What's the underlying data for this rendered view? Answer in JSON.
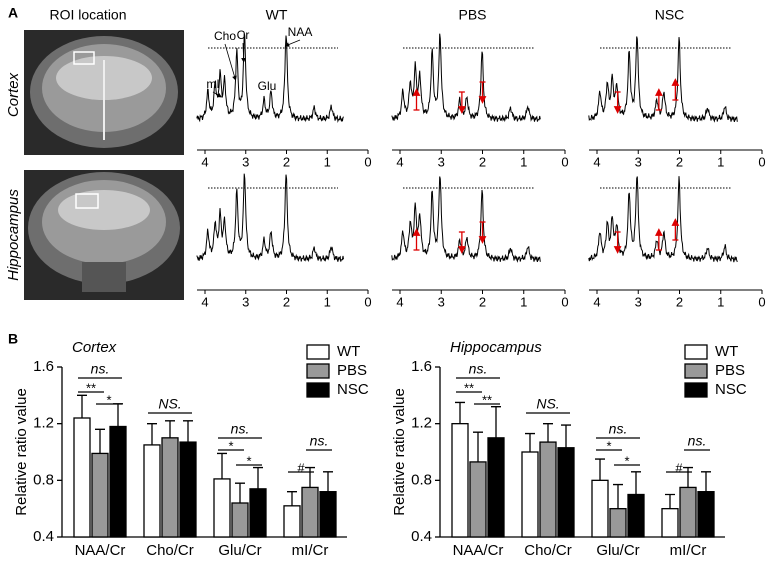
{
  "panel_labels": {
    "a": "A",
    "b": "B"
  },
  "panel_a": {
    "roi_title": "ROI location",
    "groups": [
      "WT",
      "PBS",
      "NSC"
    ],
    "regions": [
      "Cortex",
      "Hippocampus"
    ],
    "peak_labels": [
      "Cho",
      "Cr",
      "NAA",
      "mI",
      "Glu"
    ],
    "xlim": [
      4,
      0
    ],
    "xticks": [
      4,
      3,
      2,
      1,
      0
    ]
  },
  "chart_data": [
    {
      "type": "bar",
      "title": "Cortex",
      "y_label": "Relative ratio value",
      "categories": [
        "NAA/Cr",
        "Cho/Cr",
        "Glu/Cr",
        "mI/Cr"
      ],
      "series": [
        {
          "name": "WT",
          "color": "#ffffff",
          "values": [
            1.24,
            1.05,
            0.81,
            0.62
          ],
          "errors": [
            0.16,
            0.15,
            0.18,
            0.1
          ]
        },
        {
          "name": "PBS",
          "color": "#999999",
          "values": [
            0.99,
            1.1,
            0.64,
            0.75
          ],
          "errors": [
            0.17,
            0.12,
            0.14,
            0.14
          ]
        },
        {
          "name": "NSC",
          "color": "#000000",
          "values": [
            1.18,
            1.07,
            0.74,
            0.72
          ],
          "errors": [
            0.16,
            0.15,
            0.15,
            0.14
          ]
        }
      ],
      "ylim": [
        0.4,
        1.6
      ],
      "yticks": [
        0.4,
        0.8,
        1.2,
        1.6
      ],
      "legend": "upper right",
      "annotations": [
        "ns.",
        "**",
        "*",
        "NS.",
        "ns.",
        "*",
        "*",
        "#",
        "ns."
      ]
    },
    {
      "type": "bar",
      "title": "Hippocampus",
      "y_label": "Relative ratio value",
      "categories": [
        "NAA/Cr",
        "Cho/Cr",
        "Glu/Cr",
        "mI/Cr"
      ],
      "series": [
        {
          "name": "WT",
          "color": "#ffffff",
          "values": [
            1.2,
            1.0,
            0.8,
            0.6
          ],
          "errors": [
            0.15,
            0.13,
            0.15,
            0.1
          ]
        },
        {
          "name": "PBS",
          "color": "#999999",
          "values": [
            0.93,
            1.07,
            0.6,
            0.75
          ],
          "errors": [
            0.21,
            0.13,
            0.17,
            0.14
          ]
        },
        {
          "name": "NSC",
          "color": "#000000",
          "values": [
            1.1,
            1.03,
            0.7,
            0.72
          ],
          "errors": [
            0.22,
            0.16,
            0.16,
            0.14
          ]
        }
      ],
      "ylim": [
        0.4,
        1.6
      ],
      "yticks": [
        0.4,
        0.8,
        1.2,
        1.6
      ],
      "legend": "upper right",
      "annotations": [
        "ns.",
        "**",
        "**",
        "NS.",
        "ns.",
        "*",
        "*",
        "#",
        "ns."
      ]
    }
  ]
}
